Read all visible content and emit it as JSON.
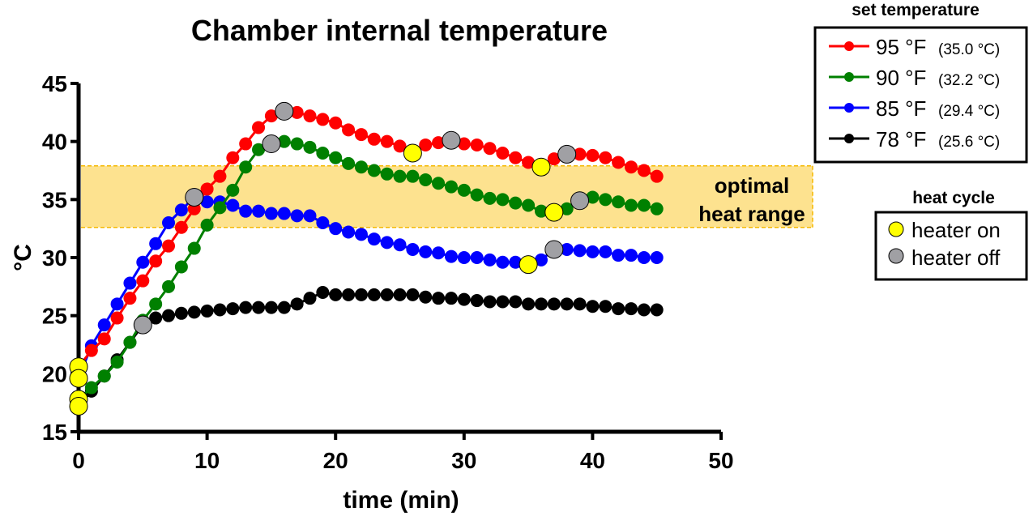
{
  "chart_data": {
    "type": "line",
    "title": "Chamber internal temperature",
    "xlabel": "time (min)",
    "ylabel": "°C",
    "xlim": [
      0,
      50
    ],
    "ylim": [
      15,
      45
    ],
    "xticks": [
      "0",
      "10",
      "20",
      "30",
      "40",
      "50"
    ],
    "yticks": [
      "15",
      "20",
      "25",
      "30",
      "35",
      "40",
      "45"
    ],
    "grid": false,
    "x": [
      0,
      1,
      2,
      3,
      4,
      5,
      6,
      7,
      8,
      9,
      10,
      11,
      12,
      13,
      14,
      15,
      16,
      17,
      18,
      19,
      20,
      21,
      22,
      23,
      24,
      25,
      26,
      27,
      28,
      29,
      30,
      31,
      32,
      33,
      34,
      35,
      36,
      37,
      38,
      39,
      40,
      41,
      42,
      43,
      44,
      45
    ],
    "series": [
      {
        "name": "95 °F",
        "name_c": "(35.0 °C)",
        "color": "#ff0000",
        "values": [
          20.6,
          22.0,
          23.0,
          24.8,
          26.5,
          28.0,
          29.7,
          31.0,
          32.6,
          34.2,
          35.9,
          37.0,
          38.6,
          39.8,
          41.2,
          42.2,
          42.6,
          42.5,
          42.2,
          41.9,
          41.6,
          41.0,
          40.6,
          40.2,
          40.0,
          39.6,
          39.0,
          39.7,
          39.9,
          40.1,
          39.8,
          39.7,
          39.4,
          39.0,
          38.6,
          38.2,
          37.8,
          38.5,
          38.9,
          38.9,
          38.8,
          38.6,
          38.2,
          37.8,
          37.5,
          37.0
        ],
        "heater_on": [
          0,
          26,
          36
        ],
        "heater_off": [
          16,
          29,
          38
        ]
      },
      {
        "name": "90 °F",
        "name_c": "(32.2 °C)",
        "color": "#008000",
        "values": [
          17.8,
          18.8,
          19.8,
          21.0,
          22.7,
          24.6,
          26.0,
          27.5,
          29.2,
          30.8,
          32.8,
          34.3,
          35.8,
          37.8,
          39.3,
          39.8,
          40.0,
          39.8,
          39.5,
          39.0,
          38.6,
          38.1,
          37.8,
          37.5,
          37.2,
          37.0,
          37.0,
          36.7,
          36.4,
          36.1,
          35.8,
          35.4,
          35.1,
          35.0,
          34.7,
          34.5,
          34.0,
          33.9,
          34.2,
          34.9,
          35.2,
          35.0,
          34.8,
          34.5,
          34.5,
          34.2
        ],
        "heater_on": [
          0,
          37
        ],
        "heater_off": [
          15,
          39
        ]
      },
      {
        "name": "85 °F",
        "name_c": "(29.4 °C)",
        "color": "#0000ff",
        "values": [
          19.6,
          22.4,
          24.2,
          26.0,
          27.8,
          29.6,
          31.2,
          33.0,
          34.1,
          35.2,
          34.8,
          34.8,
          34.5,
          34.0,
          34.0,
          33.8,
          33.8,
          33.6,
          33.6,
          33.0,
          32.5,
          32.2,
          32.0,
          31.6,
          31.3,
          31.1,
          30.7,
          30.5,
          30.4,
          30.1,
          30.0,
          30.0,
          29.8,
          29.6,
          29.6,
          29.4,
          29.8,
          30.7,
          30.7,
          30.6,
          30.5,
          30.5,
          30.2,
          30.2,
          30.0,
          30.0
        ],
        "heater_on": [
          0,
          35
        ],
        "heater_off": [
          9,
          37
        ]
      },
      {
        "name": "78 °F",
        "name_c": "(25.6 °C)",
        "color": "#000000",
        "values": [
          17.2,
          18.5,
          19.8,
          21.2,
          22.7,
          24.2,
          24.8,
          25.0,
          25.2,
          25.3,
          25.4,
          25.5,
          25.6,
          25.7,
          25.7,
          25.7,
          25.7,
          26.0,
          26.5,
          27.0,
          26.8,
          26.8,
          26.8,
          26.8,
          26.8,
          26.8,
          26.8,
          26.6,
          26.5,
          26.5,
          26.4,
          26.3,
          26.2,
          26.2,
          26.2,
          26.0,
          26.0,
          26.0,
          26.0,
          26.0,
          25.8,
          25.8,
          25.6,
          25.6,
          25.5,
          25.5
        ],
        "heater_on": [
          0
        ],
        "heater_off": [
          5
        ]
      }
    ],
    "band": {
      "label_line1": "optimal",
      "label_line2": "heat range",
      "from": 32.6,
      "to": 37.9,
      "fill": "#fde28f",
      "edge": "#f5b800"
    },
    "legend": {
      "title": "set temperature",
      "placement": "top-right"
    },
    "heat_legend": {
      "title": "heat cycle",
      "on_label": "heater on",
      "off_label": "heater off",
      "on_color": "#ffff00",
      "off_color": "#a0a0a4"
    }
  }
}
